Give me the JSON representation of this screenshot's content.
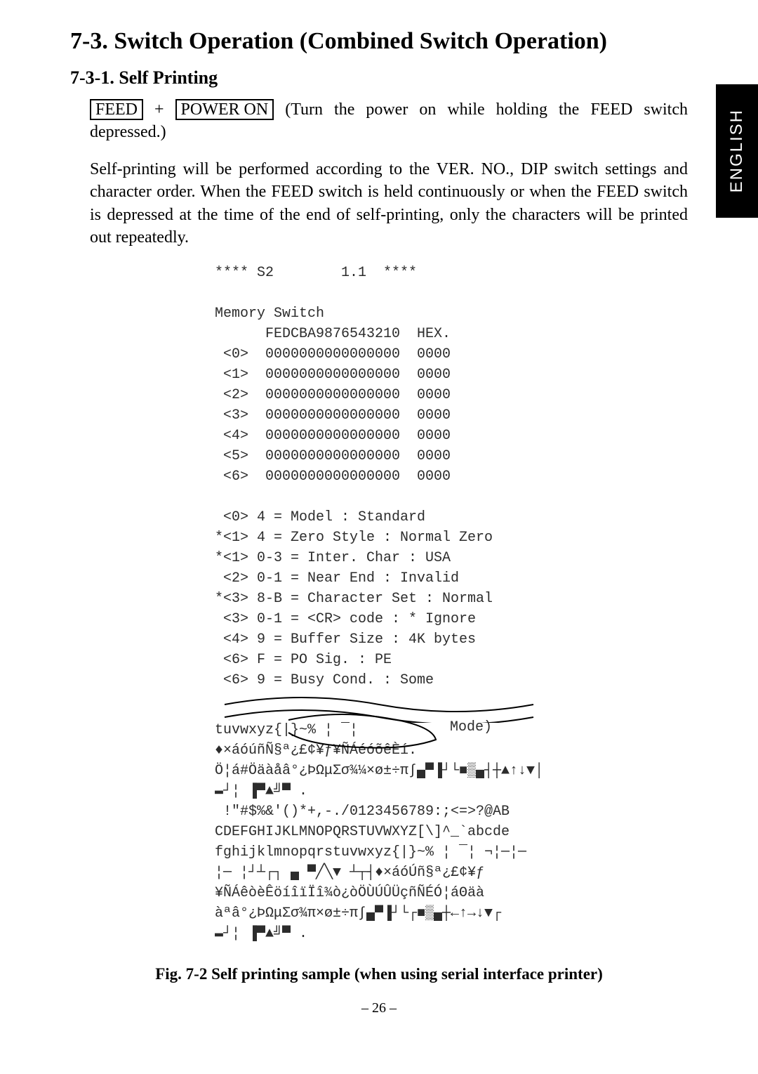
{
  "side_tab": "ENGLISH",
  "heading_main": "7-3.  Switch Operation (Combined Switch Operation)",
  "heading_sub": "7-3-1. Self Printing",
  "feed_label": "FEED",
  "plus": " + ",
  "power_label": "POWER ON",
  "instr_tail": " (Turn the power on while holding the FEED switch depressed.)",
  "para_body": "Self-printing will be performed according to the VER. NO., DIP switch settings and character order. When the FEED switch is held continuously or when the FEED switch is depressed at the time of the end of self-printing, only the characters will be printed out repeatedly.",
  "printout": {
    "header": "**** S2        1.1  ****",
    "mem_title": "Memory Switch",
    "mem_head": "      FEDCBA9876543210  HEX.",
    "rows": [
      " <0>  0000000000000000  0000",
      " <1>  0000000000000000  0000",
      " <2>  0000000000000000  0000",
      " <3>  0000000000000000  0000",
      " <4>  0000000000000000  0000",
      " <5>  0000000000000000  0000",
      " <6>  0000000000000000  0000"
    ],
    "settings": [
      " <0> 4 = Model : Standard",
      "*<1> 4 = Zero Style : Normal Zero",
      "*<1> 0-3 = Inter. Char : USA",
      " <2> 0-1 = Near End : Invalid",
      "*<3> 8-B = Character Set : Normal",
      " <3> 0-1 = <CR> code : * Ignore",
      " <4> 9 = Buffer Size : 4K bytes",
      " <6> F = PO Sig. : PE",
      " <6> 9 = Busy Cond. : Some"
    ],
    "mode_label": "Mode)",
    "charset": [
      "tuvwxyz{|}~% ¦ ¯¦",
      "♦×áóúñÑ§ª¿£¢¥ƒ¥ÑÁéóõêÈí.",
      "Ö¦á#Öäàåâ°¿ÞΩμΣσ¾¼×ø±÷π∫▄▀▐┘└■▒▄┤┼▲↑↓▼│",
      "▬┘¦ ▐▀▲╝▀ .",
      " !\"#$%&'()*+,-./0123456789:;<=>?@AB",
      "CDEFGHIJKLMNOPQRSTUVWXYZ[\\]^_`abcde",
      "fghijklmnopqrstuvwxyz{|}~% ¦ ¯¦ ¬¦─¦─",
      "¦─ ¦┘┴┌┐ ▄ ▀╱╲▼ ┴┬┤♦×áóÚñ§ª¿£¢¥ƒ",
      "¥ÑÁêòèÊöíîïÏî¾ò¿òÖÙÚÛÜçñÑÉÓ¦áΘäà",
      "àªâ°¿ÞΩμΣσ¾π×ø±÷π∫▄▀▐┘└┌■▒▄┼←↑→↓▼┌",
      "▬┘¦ ▐▀▲╝▀ ."
    ]
  },
  "caption": "Fig. 7-2 Self printing sample (when using serial interface printer)",
  "pagenum": "– 26 –"
}
